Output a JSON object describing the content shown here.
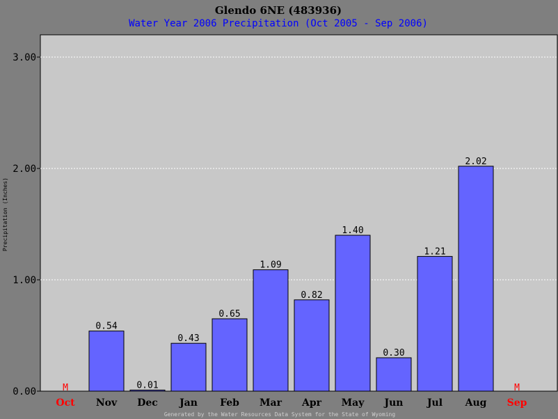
{
  "colors": {
    "background": "#7f7f7f",
    "plot_background": "#c8c8c8",
    "bar_fill": "#6464ff",
    "bar_stroke": "#000000",
    "grid": "#ffffff",
    "subtitle": "#0000ff",
    "missing": "#ff0000"
  },
  "footer": "Generated by the Water Resources Data System for the State of Wyoming",
  "chart_data": {
    "type": "bar",
    "title": "Glendo 6NE (483936)",
    "subtitle": "Water Year 2006 Precipitation (Oct 2005 - Sep 2006)",
    "xlabel": "",
    "ylabel": "Precipitation (Inches)",
    "ylim": [
      0,
      3.2
    ],
    "yticks": [
      {
        "value": 0,
        "label": "0.00"
      },
      {
        "value": 1,
        "label": "1.00"
      },
      {
        "value": 2,
        "label": "2.00"
      },
      {
        "value": 3,
        "label": "3.00"
      }
    ],
    "grid": true,
    "categories": [
      "Oct",
      "Nov",
      "Dec",
      "Jan",
      "Feb",
      "Mar",
      "Apr",
      "May",
      "Jun",
      "Jul",
      "Aug",
      "Sep"
    ],
    "values": [
      null,
      0.54,
      0.01,
      0.43,
      0.65,
      1.09,
      0.82,
      1.4,
      0.3,
      1.21,
      2.02,
      null
    ],
    "data_labels": [
      "M",
      "0.54",
      "0.01",
      "0.43",
      "0.65",
      "1.09",
      "0.82",
      "1.40",
      "0.30",
      "1.21",
      "2.02",
      "M"
    ],
    "missing": [
      true,
      false,
      false,
      false,
      false,
      false,
      false,
      false,
      false,
      false,
      false,
      true
    ]
  }
}
